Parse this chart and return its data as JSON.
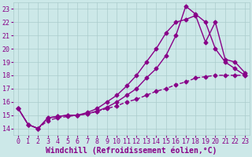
{
  "background_color": "#cce8e8",
  "grid_color": "#aacccc",
  "line_color": "#880088",
  "marker": "D",
  "marker_size": 2.5,
  "line_width": 1.0,
  "xlim": [
    -0.5,
    23.5
  ],
  "ylim": [
    13.5,
    23.5
  ],
  "yticks": [
    14,
    15,
    16,
    17,
    18,
    19,
    20,
    21,
    22,
    23
  ],
  "xticks": [
    0,
    1,
    2,
    3,
    4,
    5,
    6,
    7,
    8,
    9,
    10,
    11,
    12,
    13,
    14,
    15,
    16,
    17,
    18,
    19,
    20,
    21,
    22,
    23
  ],
  "xlabel": "Windchill (Refroidissement éolien,°C)",
  "xlabel_color": "#880088",
  "xlabel_fontsize": 7.0,
  "tick_color": "#880088",
  "tick_fontsize": 6.0,
  "line1_x": [
    0,
    1,
    2,
    3,
    4,
    5,
    6,
    7,
    8,
    9,
    10,
    11,
    12,
    13,
    14,
    15,
    16,
    17,
    18,
    19,
    20,
    21,
    22,
    23
  ],
  "line1_y": [
    15.5,
    14.3,
    14.0,
    14.8,
    14.9,
    15.0,
    15.0,
    15.1,
    15.3,
    15.6,
    16.0,
    16.5,
    17.0,
    17.8,
    18.5,
    19.5,
    21.0,
    23.2,
    22.6,
    22.0,
    20.0,
    19.0,
    18.5,
    18.0
  ],
  "line2_x": [
    0,
    1,
    2,
    3,
    4,
    5,
    6,
    7,
    8,
    9,
    10,
    11,
    12,
    13,
    14,
    15,
    16,
    17,
    18,
    19,
    20,
    21,
    22,
    23
  ],
  "line2_y": [
    15.5,
    14.3,
    14.0,
    14.8,
    14.9,
    15.0,
    15.0,
    15.2,
    15.5,
    16.0,
    16.5,
    17.2,
    18.0,
    19.0,
    20.0,
    21.2,
    22.0,
    22.2,
    22.5,
    20.5,
    22.0,
    19.2,
    19.0,
    18.2
  ],
  "line3_x": [
    0,
    1,
    2,
    3,
    4,
    5,
    6,
    7,
    8,
    9,
    10,
    11,
    12,
    13,
    14,
    15,
    16,
    17,
    18,
    19,
    20,
    21,
    22,
    23
  ],
  "line3_y": [
    15.5,
    14.3,
    14.0,
    14.6,
    14.8,
    14.9,
    15.0,
    15.1,
    15.3,
    15.5,
    15.7,
    16.0,
    16.2,
    16.5,
    16.8,
    17.0,
    17.3,
    17.5,
    17.8,
    17.9,
    18.0,
    18.0,
    18.0,
    18.0
  ]
}
